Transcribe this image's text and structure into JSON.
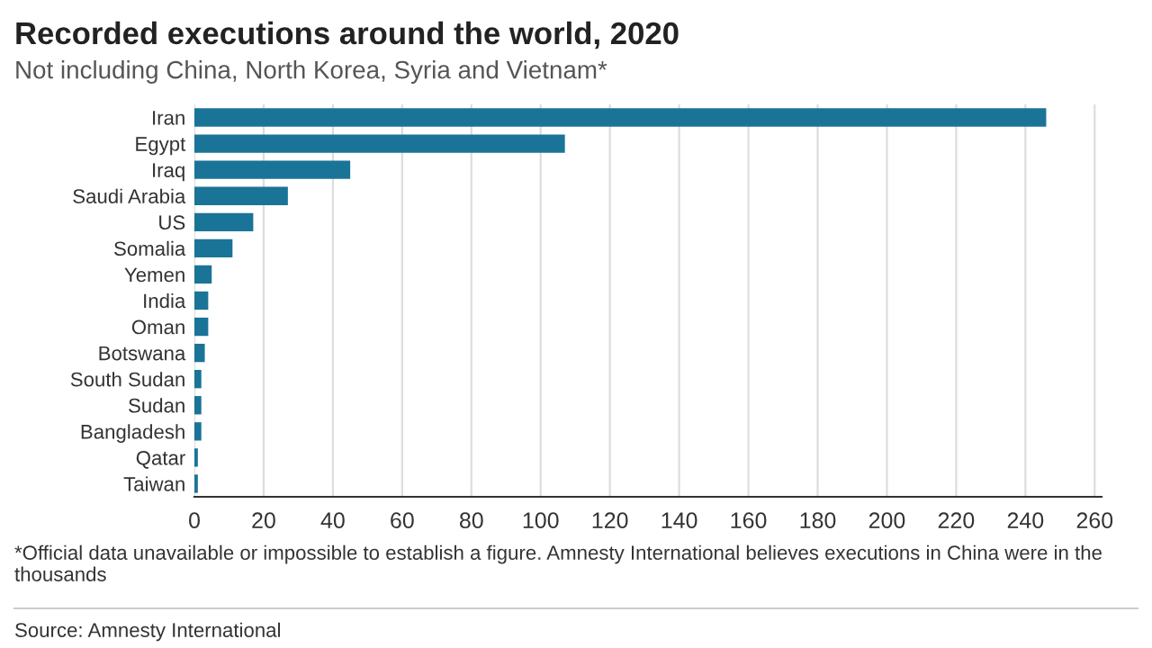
{
  "chart_data": {
    "type": "bar",
    "orientation": "horizontal",
    "title": "Recorded executions around the world, 2020",
    "subtitle": "Not including China, North Korea, Syria and Vietnam*",
    "categories": [
      "Iran",
      "Egypt",
      "Iraq",
      "Saudi Arabia",
      "US",
      "Somalia",
      "Yemen",
      "India",
      "Oman",
      "Botswana",
      "South Sudan",
      "Sudan",
      "Bangladesh",
      "Qatar",
      "Taiwan"
    ],
    "values": [
      246,
      107,
      45,
      27,
      17,
      11,
      5,
      4,
      4,
      3,
      2,
      2,
      2,
      1,
      1
    ],
    "color": "#1a7497",
    "xlim": [
      0,
      262
    ],
    "xticks": [
      0,
      20,
      40,
      60,
      80,
      100,
      120,
      140,
      160,
      180,
      200,
      220,
      240,
      260
    ],
    "grid": "x",
    "legend": false,
    "annotations": [
      "*Official data unavailable or impossible to establish a figure. Amnesty International believes executions in China were in the thousands",
      "Source: Amnesty International"
    ]
  }
}
